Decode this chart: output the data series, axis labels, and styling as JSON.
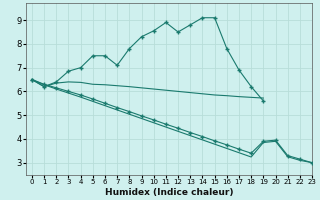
{
  "xlabel": "Humidex (Indice chaleur)",
  "xlim": [
    -0.5,
    23
  ],
  "ylim": [
    2.5,
    9.7
  ],
  "xticks": [
    0,
    1,
    2,
    3,
    4,
    5,
    6,
    7,
    8,
    9,
    10,
    11,
    12,
    13,
    14,
    15,
    16,
    17,
    18,
    19,
    20,
    21,
    22,
    23
  ],
  "yticks": [
    3,
    4,
    5,
    6,
    7,
    8,
    9
  ],
  "bg_color": "#cff0ee",
  "grid_color": "#b8ddd9",
  "line_color": "#1a7a6e",
  "line1_x": [
    0,
    1,
    2,
    3,
    4,
    5,
    6,
    7,
    8,
    9,
    10,
    11,
    12,
    13,
    14,
    15,
    16,
    17,
    18,
    19
  ],
  "line1_y": [
    6.5,
    6.2,
    6.4,
    6.85,
    7.0,
    7.5,
    7.5,
    7.1,
    7.8,
    8.3,
    8.55,
    8.9,
    8.5,
    8.8,
    9.1,
    9.1,
    7.8,
    6.9,
    6.2,
    5.6
  ],
  "line2_x": [
    0,
    1,
    2,
    3,
    4,
    5,
    6,
    7,
    8,
    9,
    10,
    11,
    12,
    13,
    14,
    15,
    16,
    17,
    18,
    19
  ],
  "line2_y": [
    6.5,
    6.2,
    6.35,
    6.4,
    6.38,
    6.3,
    6.28,
    6.24,
    6.2,
    6.15,
    6.1,
    6.05,
    6.0,
    5.95,
    5.9,
    5.85,
    5.82,
    5.78,
    5.75,
    5.72
  ],
  "line3_x": [
    0,
    1,
    2,
    3,
    4,
    5,
    6,
    7,
    8,
    9,
    10,
    11,
    12,
    13,
    14,
    15,
    16,
    17,
    18,
    19,
    20,
    21,
    22,
    23
  ],
  "line3_y": [
    6.5,
    6.3,
    6.15,
    6.0,
    5.85,
    5.68,
    5.5,
    5.32,
    5.15,
    4.97,
    4.8,
    4.62,
    4.45,
    4.27,
    4.1,
    3.92,
    3.75,
    3.57,
    3.4,
    3.9,
    3.95,
    3.3,
    3.15,
    3.0
  ],
  "line4_x": [
    0,
    1,
    2,
    3,
    4,
    5,
    6,
    7,
    8,
    9,
    10,
    11,
    12,
    13,
    14,
    15,
    16,
    17,
    18,
    19,
    20,
    21,
    22,
    23
  ],
  "line4_y": [
    6.5,
    6.28,
    6.1,
    5.93,
    5.76,
    5.58,
    5.4,
    5.22,
    5.04,
    4.86,
    4.68,
    4.5,
    4.32,
    4.14,
    3.96,
    3.78,
    3.6,
    3.42,
    3.24,
    3.85,
    3.9,
    3.25,
    3.1,
    3.0
  ]
}
